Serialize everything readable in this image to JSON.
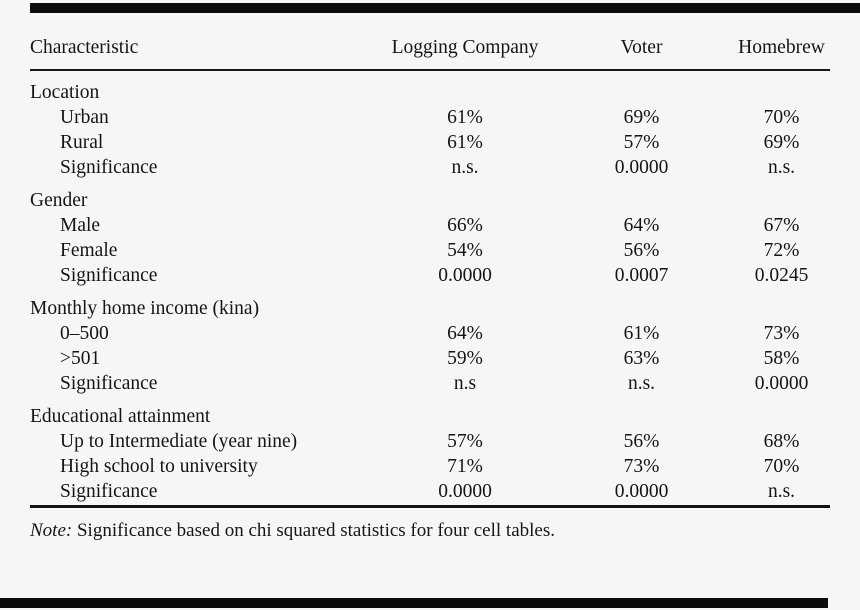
{
  "table": {
    "columns": [
      "Characteristic",
      "Logging Company",
      "Voter",
      "Homebrew"
    ],
    "sections": [
      {
        "label": "Location",
        "rows": [
          {
            "label": "Urban",
            "values": [
              "61%",
              "69%",
              "70%"
            ]
          },
          {
            "label": "Rural",
            "values": [
              "61%",
              "57%",
              "69%"
            ]
          },
          {
            "label": "Significance",
            "values": [
              "n.s.",
              "0.0000",
              "n.s."
            ]
          }
        ]
      },
      {
        "label": "Gender",
        "rows": [
          {
            "label": "Male",
            "values": [
              "66%",
              "64%",
              "67%"
            ]
          },
          {
            "label": "Female",
            "values": [
              "54%",
              "56%",
              "72%"
            ]
          },
          {
            "label": "Significance",
            "values": [
              "0.0000",
              "0.0007",
              "0.0245"
            ]
          }
        ]
      },
      {
        "label": "Monthly home income (kina)",
        "rows": [
          {
            "label": "0–500",
            "values": [
              "64%",
              "61%",
              "73%"
            ]
          },
          {
            "label": ">501",
            "values": [
              "59%",
              "63%",
              "58%"
            ]
          },
          {
            "label": "Significance",
            "values": [
              "n.s",
              "n.s.",
              "0.0000"
            ]
          }
        ]
      },
      {
        "label": "Educational attainment",
        "rows": [
          {
            "label": "Up to Intermediate (year nine)",
            "values": [
              "57%",
              "56%",
              "68%"
            ]
          },
          {
            "label": "High school to university",
            "values": [
              "71%",
              "73%",
              "70%"
            ]
          },
          {
            "label": "Significance",
            "values": [
              "0.0000",
              "0.0000",
              "n.s."
            ]
          }
        ]
      }
    ],
    "note_label": "Note:",
    "note_text": " Significance based on chi squared statistics for four cell tables."
  }
}
